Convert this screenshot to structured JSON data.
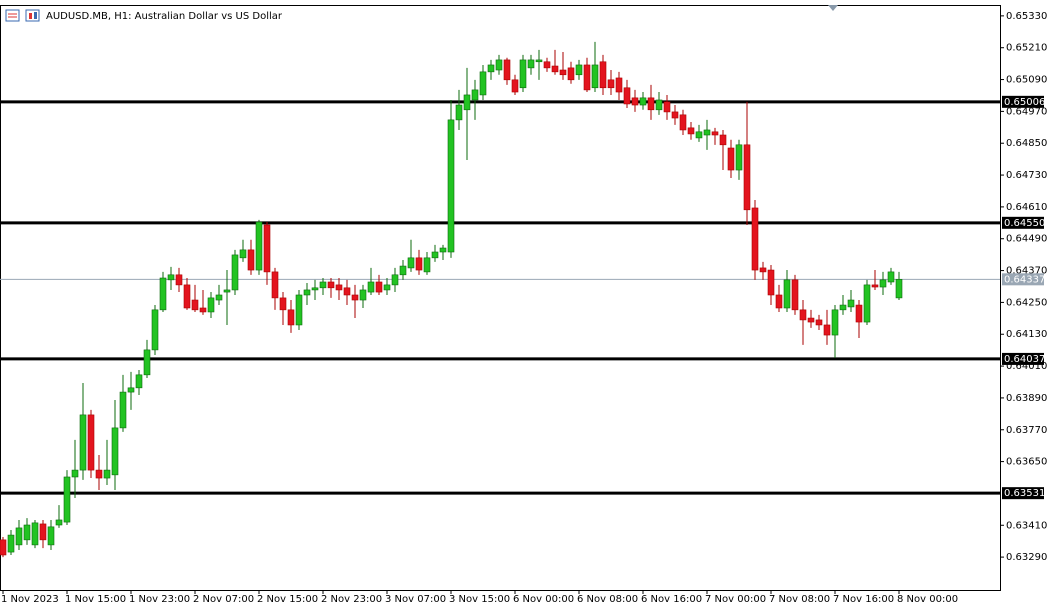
{
  "chart_data": {
    "type": "candlestick",
    "title": "AUDUSD.MB, H1:  Australian Dollar vs US Dollar",
    "categories": [
      "1 Nov 2023",
      null,
      null,
      null,
      null,
      null,
      null,
      null,
      "1 Nov 15:00",
      null,
      null,
      null,
      null,
      null,
      null,
      null,
      "1 Nov 23:00",
      null,
      null,
      null,
      null,
      null,
      null,
      null,
      "2 Nov 07:00",
      null,
      null,
      null,
      null,
      null,
      null,
      null,
      "2 Nov 15:00",
      null,
      null,
      null,
      null,
      null,
      null,
      null,
      "2 Nov 23:00",
      null,
      null,
      null,
      null,
      null,
      null,
      null,
      "3 Nov 07:00",
      null,
      null,
      null,
      null,
      null,
      null,
      null,
      "3 Nov 15:00",
      null,
      null,
      null,
      null,
      null,
      null,
      null,
      "6 Nov 00:00",
      null,
      null,
      null,
      null,
      null,
      null,
      null,
      "6 Nov 08:00",
      null,
      null,
      null,
      null,
      null,
      null,
      null,
      "6 Nov 16:00",
      null,
      null,
      null,
      null,
      null,
      null,
      null,
      "7 Nov 00:00",
      null,
      null,
      null,
      null,
      null,
      null,
      null,
      "7 Nov 08:00",
      null,
      null,
      null,
      null,
      null,
      null,
      null,
      "7 Nov 16:00",
      null,
      null,
      null,
      null,
      null,
      null,
      null,
      "8 Nov 00:00"
    ],
    "open": [
      0.63355,
      0.63309,
      0.63336,
      0.63355,
      0.63336,
      0.63415,
      0.63336,
      0.63411,
      0.63422,
      0.63592,
      0.63618,
      0.63826,
      0.63618,
      0.63588,
      0.636,
      0.63777,
      0.63912,
      0.63928,
      0.63977,
      0.64071,
      0.64222,
      0.64335,
      0.64354,
      0.64316,
      0.64259,
      0.64229,
      0.64214,
      0.64259,
      0.64289,
      0.64297,
      0.64418,
      0.64448,
      0.64372,
      0.64542,
      0.64365,
      0.64267,
      0.64222,
      0.64165,
      0.64278,
      0.64297,
      0.64305,
      0.64327,
      0.64316,
      0.64305,
      0.64278,
      0.64259,
      0.64289,
      0.64327,
      0.64297,
      0.64316,
      0.64354,
      0.6438,
      0.64418,
      0.64365,
      0.64418,
      0.6444,
      0.6444,
      0.64938,
      0.64976,
      0.65013,
      0.65032,
      0.65119,
      0.65126,
      0.65164,
      0.65089,
      0.65059,
      0.65134,
      0.65157,
      0.65157,
      0.65141,
      0.65126,
      0.65134,
      0.65108,
      0.65145,
      0.65059,
      0.65157,
      0.65089,
      0.65096,
      0.65059,
      0.65021,
      0.64994,
      0.65021,
      0.64976,
      0.65006,
      0.64968,
      0.64957,
      0.64908,
      0.6487,
      0.64881,
      0.64893,
      0.64881,
      0.64832,
      0.64749,
      0.64844,
      0.64606,
      0.6438,
      0.64372,
      0.64278,
      0.64229,
      0.64335,
      0.64222,
      0.64191,
      0.64184,
      0.64165,
      0.64127,
      0.64222,
      0.64233,
      0.6424,
      0.64176,
      0.64316,
      0.64308,
      0.64327,
      0.64267
    ],
    "high": [
      0.63366,
      0.63392,
      0.6343,
      0.63437,
      0.6343,
      0.6343,
      0.6343,
      0.63486,
      0.63618,
      0.63732,
      0.63946,
      0.63845,
      0.63675,
      0.63732,
      0.63882,
      0.63977,
      0.63988,
      0.63995,
      0.64109,
      0.6424,
      0.64365,
      0.64384,
      0.6438,
      0.64342,
      0.64316,
      0.64297,
      0.64289,
      0.64316,
      0.64372,
      0.64448,
      0.64486,
      0.64486,
      0.64561,
      0.64553,
      0.6438,
      0.64289,
      0.64259,
      0.64297,
      0.64323,
      0.64335,
      0.64342,
      0.64342,
      0.64342,
      0.64335,
      0.64316,
      0.64316,
      0.6438,
      0.64354,
      0.64342,
      0.6438,
      0.6441,
      0.64486,
      0.64448,
      0.6444,
      0.64467,
      0.64467,
      0.65013,
      0.65051,
      0.65134,
      0.65089,
      0.65145,
      0.65164,
      0.65183,
      0.65172,
      0.65108,
      0.65183,
      0.65183,
      0.65202,
      0.65172,
      0.65202,
      0.65194,
      0.65157,
      0.65164,
      0.65172,
      0.65232,
      0.65183,
      0.65126,
      0.65119,
      0.65089,
      0.65051,
      0.65043,
      0.6507,
      0.65043,
      0.65032,
      0.64994,
      0.64976,
      0.6493,
      0.64919,
      0.64938,
      0.64908,
      0.649,
      0.64863,
      0.64863,
      0.65006,
      0.64636,
      0.64403,
      0.64391,
      0.64316,
      0.64372,
      0.64354,
      0.64259,
      0.64222,
      0.64203,
      0.64222,
      0.6424,
      0.64278,
      0.64297,
      0.64259,
      0.64335,
      0.64372,
      0.64365,
      0.6438,
      0.64365
    ],
    "low": [
      0.6329,
      0.63298,
      0.63317,
      0.63336,
      0.63324,
      0.63324,
      0.63317,
      0.634,
      0.63411,
      0.63513,
      0.63581,
      0.63588,
      0.63543,
      0.63562,
      0.63543,
      0.63762,
      0.63845,
      0.63901,
      0.63965,
      0.64052,
      0.64214,
      0.64297,
      0.64289,
      0.64222,
      0.64214,
      0.64203,
      0.64191,
      0.6424,
      0.64165,
      0.64278,
      0.64403,
      0.64354,
      0.64354,
      0.64316,
      0.64222,
      0.64165,
      0.64135,
      0.64146,
      0.6424,
      0.64259,
      0.64278,
      0.64267,
      0.64259,
      0.6424,
      0.64191,
      0.64229,
      0.64278,
      0.64278,
      0.64278,
      0.64289,
      0.64335,
      0.64365,
      0.64354,
      0.64354,
      0.64403,
      0.6441,
      0.64418,
      0.649,
      0.64787,
      0.64938,
      0.65013,
      0.65089,
      0.65108,
      0.6507,
      0.65032,
      0.65043,
      0.65108,
      0.65089,
      0.65119,
      0.65108,
      0.65089,
      0.65074,
      0.65089,
      0.65043,
      0.65043,
      0.65032,
      0.65032,
      0.65013,
      0.64983,
      0.64968,
      0.64976,
      0.64938,
      0.64957,
      0.64938,
      0.64919,
      0.64881,
      0.64863,
      0.64855,
      0.64825,
      0.64844,
      0.64749,
      0.64719,
      0.64712,
      0.64542,
      0.64335,
      0.64335,
      0.6424,
      0.64214,
      0.64214,
      0.64203,
      0.6409,
      0.64154,
      0.64146,
      0.6409,
      0.64041,
      0.64203,
      0.64214,
      0.64116,
      0.64165,
      0.64297,
      0.64278,
      0.64316,
      0.64259
    ],
    "close": [
      0.63298,
      0.63373,
      0.634,
      0.63411,
      0.63419,
      0.63355,
      0.63404,
      0.6343,
      0.63592,
      0.63618,
      0.63826,
      0.63618,
      0.63588,
      0.63618,
      0.63777,
      0.63912,
      0.63928,
      0.63977,
      0.64071,
      0.64222,
      0.64342,
      0.64354,
      0.64316,
      0.64229,
      0.64222,
      0.64214,
      0.64267,
      0.64278,
      0.64297,
      0.64429,
      0.64448,
      0.64372,
      0.64553,
      0.64365,
      0.64267,
      0.64222,
      0.64165,
      0.64278,
      0.64297,
      0.64305,
      0.64327,
      0.64305,
      0.64297,
      0.64278,
      0.64259,
      0.64297,
      0.64327,
      0.64289,
      0.64316,
      0.64354,
      0.64387,
      0.64418,
      0.64372,
      0.64418,
      0.6444,
      0.64455,
      0.64938,
      0.64994,
      0.65032,
      0.65051,
      0.65119,
      0.65145,
      0.65164,
      0.65089,
      0.65043,
      0.65164,
      0.65164,
      0.65164,
      0.65134,
      0.65119,
      0.65108,
      0.65089,
      0.65145,
      0.65051,
      0.65145,
      0.65059,
      0.65059,
      0.65043,
      0.64998,
      0.64994,
      0.65021,
      0.64976,
      0.65013,
      0.64968,
      0.64945,
      0.649,
      0.64885,
      0.64893,
      0.649,
      0.64881,
      0.64844,
      0.64749,
      0.64844,
      0.64599,
      0.64372,
      0.64365,
      0.64278,
      0.64229,
      0.64335,
      0.64222,
      0.64184,
      0.64176,
      0.64165,
      0.64127,
      0.64222,
      0.6424,
      0.64259,
      0.64176,
      0.64316,
      0.64308,
      0.64335,
      0.64365,
      0.64337
    ],
    "up_color": "#22c322",
    "down_color": "#e3141e",
    "ylim": [
      0.63166,
      0.65371
    ],
    "yticks": [
      {
        "value": 0.6533,
        "label": "0.65330"
      },
      {
        "value": 0.6521,
        "label": "0.65210"
      },
      {
        "value": 0.6509,
        "label": "0.65090"
      },
      {
        "value": 0.6497,
        "label": "0.64970"
      },
      {
        "value": 0.6485,
        "label": "0.64850"
      },
      {
        "value": 0.6473,
        "label": "0.64730"
      },
      {
        "value": 0.6461,
        "label": "0.64610"
      },
      {
        "value": 0.6449,
        "label": "0.64490"
      },
      {
        "value": 0.6437,
        "label": "0.64370"
      },
      {
        "value": 0.6425,
        "label": "0.64250"
      },
      {
        "value": 0.6413,
        "label": "0.64130"
      },
      {
        "value": 0.6401,
        "label": "0.64010"
      },
      {
        "value": 0.6389,
        "label": "0.63890"
      },
      {
        "value": 0.6377,
        "label": "0.63770"
      },
      {
        "value": 0.6365,
        "label": "0.63650"
      },
      {
        "value": 0.6341,
        "label": "0.63410"
      },
      {
        "value": 0.6329,
        "label": "0.63290"
      }
    ],
    "levels": [
      0.65006,
      {
        "value": 0.6455,
        "label": "0.64550"
      },
      0.64037,
      0.63531
    ],
    "price_line": 0.64337
  }
}
